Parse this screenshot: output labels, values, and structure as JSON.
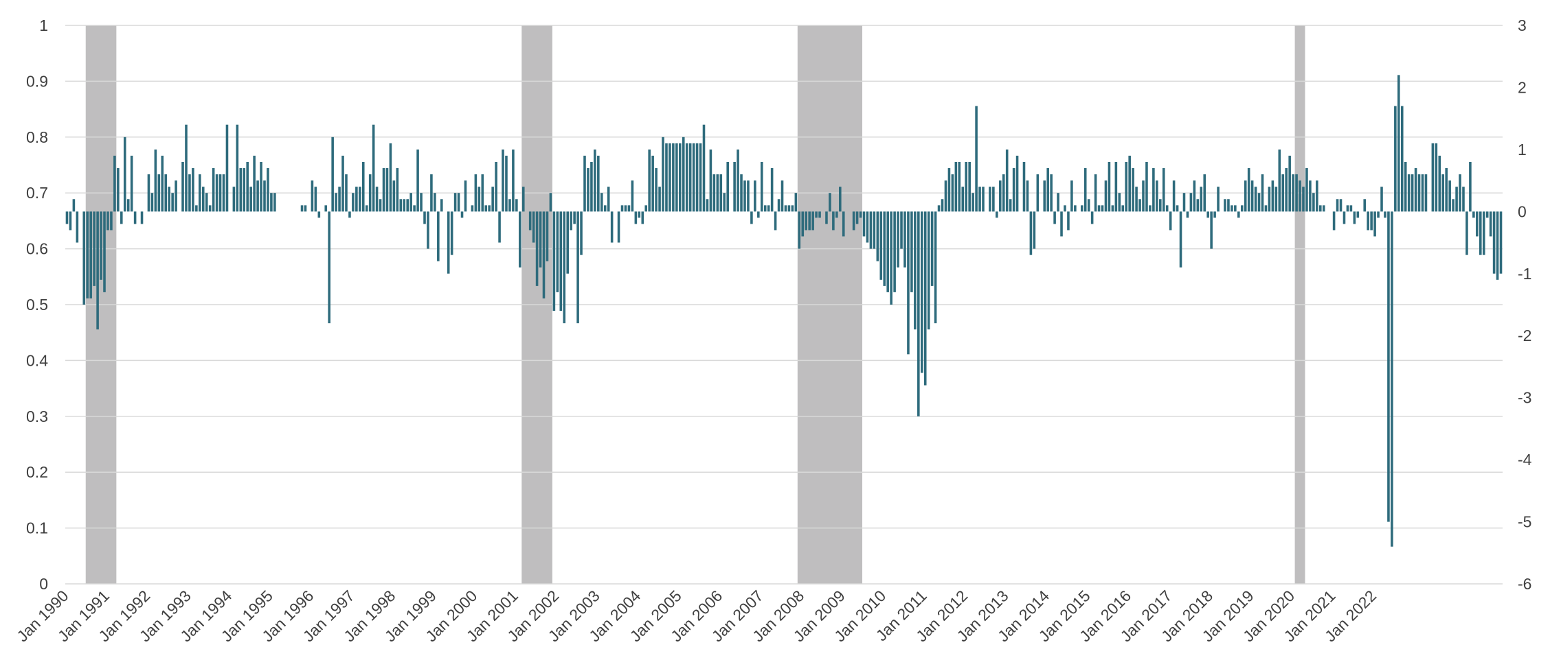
{
  "chart_data": {
    "type": "bar",
    "title": "",
    "xlabel": "",
    "ylabel": "",
    "y2label": "",
    "grid": true,
    "legend": "none",
    "colors": {
      "bar": "#2E6B7C",
      "recession": "#BFBEBF",
      "grid": "#D9D9D9",
      "text": "#404040"
    },
    "x_tick_labels": [
      "Jan 1990",
      "Jan 1991",
      "Jan 1992",
      "Jan 1993",
      "Jan 1994",
      "Jan 1995",
      "Jan 1996",
      "Jan 1997",
      "Jan 1998",
      "Jan 1999",
      "Jan 2000",
      "Jan 2001",
      "Jan 2002",
      "Jan 2003",
      "Jan 2004",
      "Jan 2005",
      "Jan 2006",
      "Jan 2007",
      "Jan 2008",
      "Jan 2009",
      "Jan 2010",
      "Jan 2011",
      "Jan 2012",
      "Jan 2013",
      "Jan 2014",
      "Jan 2015",
      "Jan 2016",
      "Jan 2017",
      "Jan 2018",
      "Jan 2019",
      "Jan 2020",
      "Jan 2021",
      "Jan 2022"
    ],
    "left_axis": {
      "ticks": [
        "0",
        "0.1",
        "0.2",
        "0.3",
        "0.4",
        "0.5",
        "0.6",
        "0.7",
        "0.8",
        "0.9",
        "1"
      ],
      "ylim": [
        0,
        1
      ]
    },
    "right_axis": {
      "ticks": [
        "-6",
        "-5",
        "-4",
        "-3",
        "-2",
        "-1",
        "0",
        "1",
        "2",
        "3"
      ],
      "ylim": [
        -6,
        3
      ]
    },
    "recession_periods": [
      {
        "start": "1990-07",
        "end": "1991-03"
      },
      {
        "start": "2001-03",
        "end": "2001-11"
      },
      {
        "start": "2007-12",
        "end": "2009-06"
      },
      {
        "start": "2020-02",
        "end": "2020-04"
      }
    ],
    "series": [
      {
        "axis": "right",
        "start": "1990-01",
        "frequency": "monthly",
        "values": [
          -0.2,
          -0.3,
          0.2,
          -0.5,
          0,
          -1.5,
          -1.4,
          -1.4,
          -1.2,
          -1.9,
          -1.1,
          -1.3,
          -0.3,
          -0.3,
          0.9,
          0.7,
          -0.2,
          1.2,
          0.2,
          0.9,
          -0.2,
          0,
          -0.2,
          0,
          0.6,
          0.3,
          1.0,
          0.6,
          0.9,
          0.6,
          0.4,
          0.3,
          0.5,
          0,
          0.8,
          1.4,
          0.6,
          0.7,
          0.1,
          0.6,
          0.4,
          0.3,
          0.1,
          0.7,
          0.6,
          0.6,
          0.6,
          1.4,
          0,
          0.4,
          1.4,
          0.7,
          0.7,
          0.8,
          0.4,
          0.9,
          0.5,
          0.8,
          0.5,
          0.7,
          0.3,
          0.3,
          0,
          0,
          0,
          0,
          0,
          0,
          0,
          0.1,
          0.1,
          0,
          0.5,
          0.4,
          -0.1,
          0,
          0.1,
          -1.8,
          1.2,
          0.3,
          0.4,
          0.9,
          0.6,
          -0.1,
          0.3,
          0.4,
          0.4,
          0.8,
          0.1,
          0.6,
          1.4,
          0.4,
          0.2,
          0.7,
          0.7,
          1.1,
          0.5,
          0.7,
          0.2,
          0.2,
          0.2,
          0.3,
          0.1,
          1.0,
          0.3,
          -0.2,
          -0.6,
          0.6,
          0.3,
          -0.8,
          0.2,
          0,
          -1.0,
          -0.7,
          0.3,
          0.3,
          -0.1,
          0.5,
          0,
          0.1,
          0.6,
          0.4,
          0.6,
          0.1,
          0.1,
          0.4,
          0.8,
          -0.5,
          1.0,
          0.9,
          0.2,
          1.0,
          0.2,
          -0.9,
          0.4,
          0,
          -0.3,
          -0.5,
          -1.2,
          -0.9,
          -1.4,
          -0.8,
          0.3,
          -1.6,
          -1.3,
          -1.6,
          -1.8,
          -1.0,
          -0.3,
          -0.2,
          -1.8,
          -0.7,
          0.9,
          0.7,
          0.8,
          1.0,
          0.9,
          0.3,
          0.1,
          0.4,
          -0.5,
          0,
          -0.5,
          0.1,
          0.1,
          0.1,
          0.5,
          -0.2,
          -0.1,
          -0.2,
          0.1,
          1.0,
          0.9,
          0.7,
          0.4,
          1.2,
          1.1,
          1.1,
          1.1,
          1.1,
          1.1,
          1.2,
          1.1,
          1.1,
          1.1,
          1.1,
          1.1,
          1.4,
          0.2,
          1.0,
          0.6,
          0.6,
          0.6,
          0.3,
          0.8,
          0,
          0.8,
          1.0,
          0.6,
          0.5,
          0.5,
          -0.2,
          0.5,
          -0.1,
          0.8,
          0.1,
          0.1,
          0.7,
          -0.3,
          0.2,
          0.5,
          0.1,
          0.1,
          0.1,
          0.3,
          -0.6,
          -0.4,
          -0.3,
          -0.3,
          -0.3,
          -0.1,
          -0.1,
          0,
          -0.2,
          0.3,
          -0.3,
          -0.1,
          0.4,
          -0.4,
          0,
          0,
          -0.3,
          -0.2,
          -0.1,
          -0.4,
          -0.5,
          -0.6,
          -0.6,
          -0.8,
          -1.1,
          -1.2,
          -1.3,
          -1.5,
          -1.3,
          -0.9,
          -0.6,
          -0.9,
          -2.3,
          -1.3,
          -1.9,
          -3.3,
          -2.6,
          -2.8,
          -1.9,
          -1.2,
          -1.8,
          0.1,
          0.2,
          0.5,
          0.7,
          0.6,
          0.8,
          0.8,
          0.4,
          0.8,
          0.8,
          0.3,
          1.7,
          0.4,
          0.4,
          0,
          0.4,
          0.4,
          -0.1,
          0.5,
          0.6,
          1.0,
          0.2,
          0.7,
          0.9,
          0,
          0.8,
          0.5,
          -0.7,
          -0.6,
          0.6,
          0,
          0.5,
          0.7,
          0.6,
          -0.2,
          0.3,
          -0.4,
          0.1,
          -0.3,
          0.5,
          0.1,
          0,
          0.1,
          0.7,
          0.2,
          -0.2,
          0.6,
          0.1,
          0.1,
          0.5,
          0.8,
          0.1,
          0.8,
          0.3,
          0.1,
          0.8,
          0.9,
          0.7,
          0.4,
          0.2,
          0.5,
          0.8,
          0.1,
          0.7,
          0.5,
          0.2,
          0.7,
          0.1,
          -0.3,
          0.5,
          0.1,
          -0.9,
          0.3,
          -0.1,
          0.3,
          0.5,
          0.2,
          0.4,
          0.6,
          -0.1,
          -0.6,
          -0.1,
          0.4,
          0,
          0.2,
          0.2,
          0.1,
          0.1,
          -0.1,
          0.1,
          0.5,
          0.7,
          0.5,
          0.4,
          0.3,
          0.6,
          0.1,
          0.4,
          0.5,
          0.4,
          1.0,
          0.6,
          0.7,
          0.9,
          0.6,
          0.6,
          0.5,
          0.4,
          0.7,
          0.5,
          0.3,
          0.5,
          0.1,
          0.1,
          0,
          0,
          -0.3,
          0.2,
          0.2,
          -0.2,
          0.1,
          0.1,
          -0.2,
          -0.1,
          0,
          0.2,
          -0.3,
          -0.3,
          -0.4,
          -0.1,
          0.4,
          -0.1,
          -5.0,
          -5.4,
          1.7,
          2.2,
          1.7,
          0.8,
          0.6,
          0.6,
          0.7,
          0.6,
          0.6,
          0.6,
          0,
          1.1,
          1.1,
          0.9,
          0.6,
          0.7,
          0.5,
          0.2,
          0.4,
          0.6,
          0.4,
          -0.7,
          0.8,
          -0.1,
          -0.4,
          -0.7,
          -0.7,
          -0.1,
          -0.4,
          -1.0,
          -1.1,
          -1.0
        ]
      }
    ]
  }
}
